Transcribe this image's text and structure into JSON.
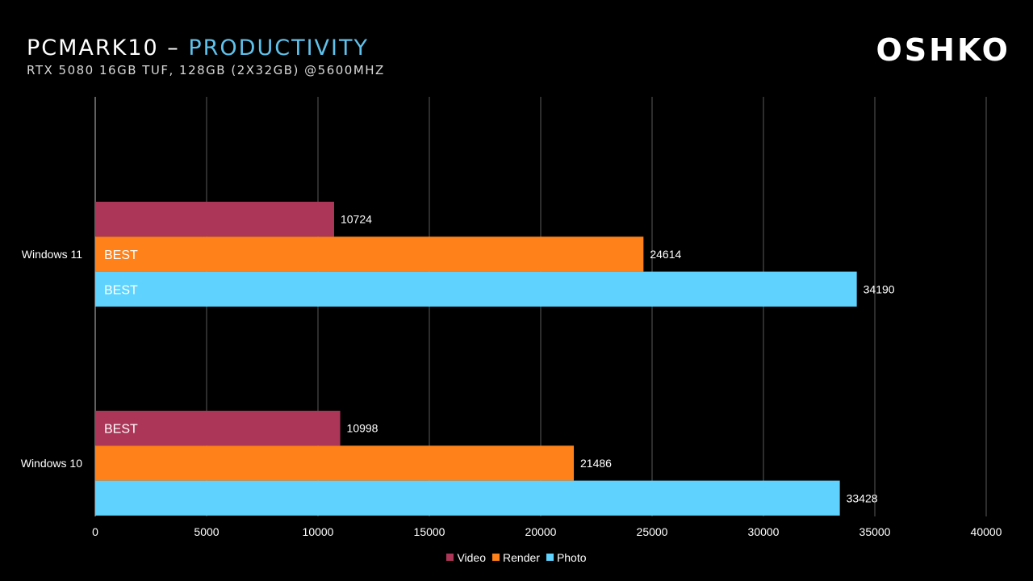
{
  "header": {
    "title_main": "PCMARK10 – ",
    "title_accent": "PRODUCTIVITY",
    "subtitle": "RTX 5080 16GB TUF, 128GB (2X32GB) @5600MHZ",
    "logo": "OSHKO",
    "accent_color": "#5fc2ec"
  },
  "chart_data": {
    "type": "bar",
    "orientation": "horizontal",
    "title": "PCMARK10 – PRODUCTIVITY",
    "subtitle": "RTX 5080 16GB TUF, 128GB (2X32GB) @5600MHZ",
    "xlabel": "",
    "ylabel": "",
    "xlim": [
      0,
      40000
    ],
    "x_ticks": [
      0,
      5000,
      10000,
      15000,
      20000,
      25000,
      30000,
      35000,
      40000
    ],
    "grid": true,
    "legend_position": "bottom",
    "categories": [
      "Windows 11",
      "Windows 10"
    ],
    "series": [
      {
        "name": "Video",
        "color": "#ac3657",
        "values": [
          10724,
          10998
        ],
        "best_labels": [
          "",
          "BEST"
        ]
      },
      {
        "name": "Render",
        "color": "#fe8119",
        "values": [
          24614,
          21486
        ],
        "best_labels": [
          "BEST",
          ""
        ]
      },
      {
        "name": "Photo",
        "color": "#5fd3fd",
        "values": [
          34190,
          33428
        ],
        "best_labels": [
          "BEST",
          ""
        ]
      }
    ]
  }
}
